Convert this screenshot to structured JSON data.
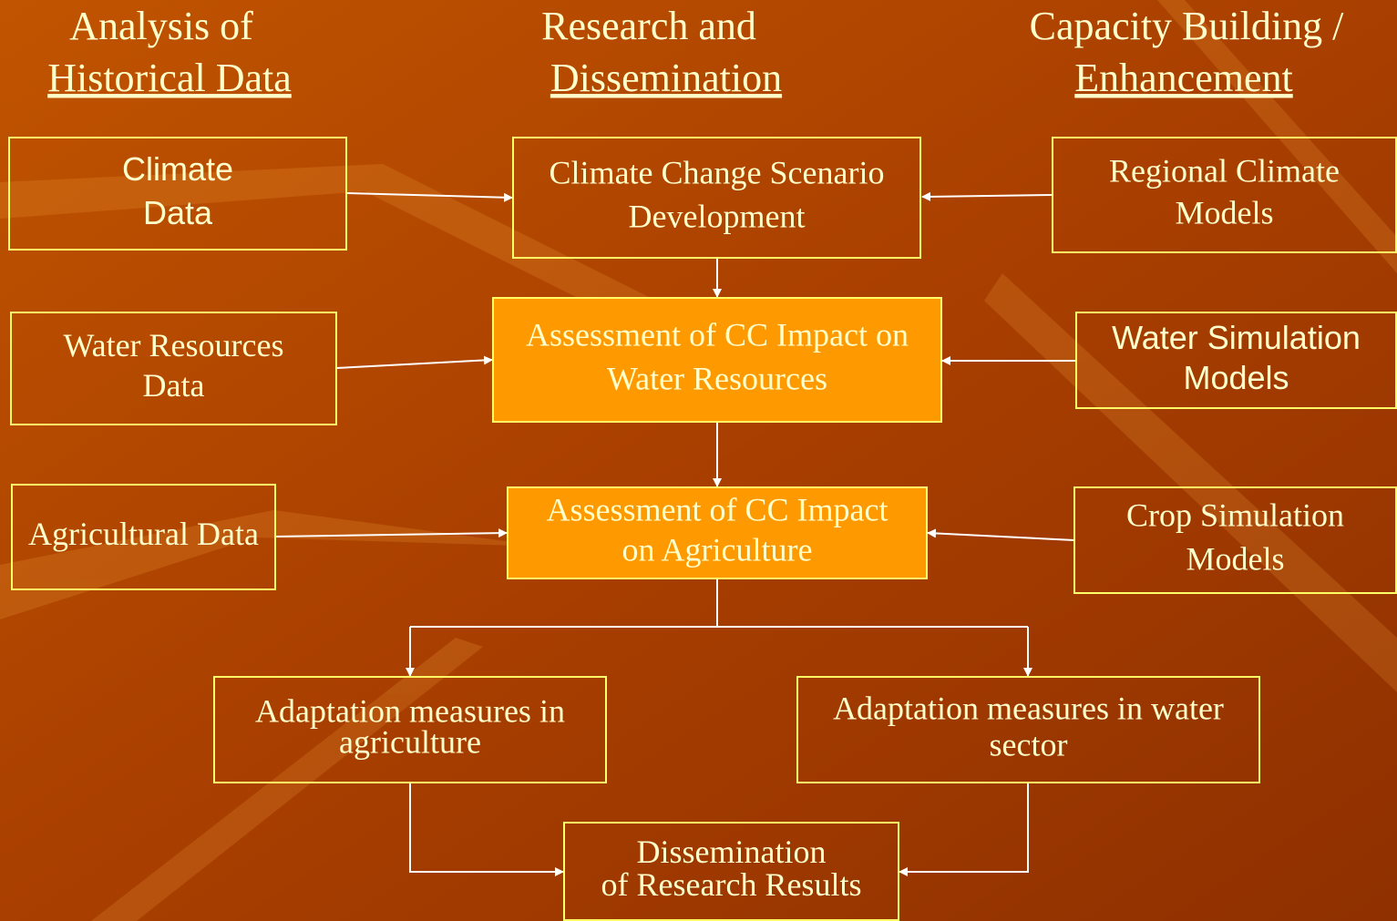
{
  "headers": [
    {
      "line1": "Analysis of",
      "line2": "Historical Data"
    },
    {
      "line1": "Research and",
      "line2": "Dissemination"
    },
    {
      "line1": "Capacity Building /",
      "line2": "Enhancement"
    }
  ],
  "nodes": [
    {
      "lines": [
        "Climate",
        "Data"
      ]
    },
    {
      "lines": [
        "Climate Change Scenario",
        "Development"
      ]
    },
    {
      "lines": [
        "Regional Climate",
        "Models"
      ]
    },
    {
      "lines": [
        "Water Resources",
        "Data"
      ]
    },
    {
      "lines": [
        "Assessment of CC Impact on",
        "Water Resources"
      ]
    },
    {
      "lines": [
        "Water Simulation",
        "Models"
      ]
    },
    {
      "lines": [
        "Agricultural Data"
      ]
    },
    {
      "lines": [
        "Assessment of CC Impact",
        "on Agriculture"
      ]
    },
    {
      "lines": [
        "Crop Simulation",
        "Models"
      ]
    },
    {
      "lines": [
        "Adaptation measures in",
        "agriculture"
      ]
    },
    {
      "lines": [
        "Adaptation measures in water",
        "sector"
      ]
    },
    {
      "lines": [
        "Dissemination",
        "of Research Results"
      ]
    }
  ]
}
